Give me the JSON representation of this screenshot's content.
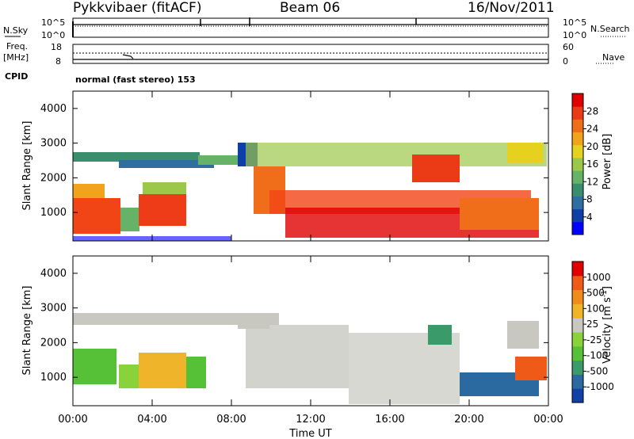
{
  "header": {
    "station": "Pykkvibaer (fitACF)",
    "beam": "Beam 06",
    "date": "16/Nov/2011"
  },
  "nsky_panel": {
    "left_label": "N.Sky",
    "left_ticks": [
      "10^5",
      "10^0"
    ],
    "right_label": "N.Search",
    "right_ticks": [
      "10^5",
      "10^0"
    ]
  },
  "freq_panel": {
    "left_label_1": "Freq.",
    "left_label_2": "[MHz]",
    "left_ticks": [
      "18",
      "8"
    ],
    "right_label": "Nave",
    "right_ticks": [
      "60",
      "0"
    ]
  },
  "cpid": {
    "label": "CPID",
    "value": "normal (fast stereo) 153"
  },
  "chart_data": [
    {
      "type": "heatmap",
      "name": "power",
      "ylabel": "Slant Range [km]",
      "yticks": [
        "4000",
        "3000",
        "2000",
        "1000"
      ],
      "ylim": [
        180,
        4500
      ],
      "xlim": [
        0,
        24
      ],
      "colorbar": {
        "label": "Power [dB]",
        "ticks": [
          "28",
          "24",
          "20",
          "16",
          "12",
          "8",
          "4"
        ],
        "colors": [
          "#0000ff",
          "#0e3fa8",
          "#2e6fa0",
          "#3a8e6e",
          "#66b266",
          "#9cc84a",
          "#e6d21e",
          "#f2a31c",
          "#f06e1a",
          "#ea3a16",
          "#e00000"
        ]
      }
    },
    {
      "type": "heatmap",
      "name": "velocity",
      "ylabel": "Slant Range [km]",
      "yticks": [
        "4000",
        "3000",
        "2000",
        "1000"
      ],
      "ylim": [
        180,
        4500
      ],
      "xlim": [
        0,
        24
      ],
      "colorbar": {
        "label": "Velocity [m s",
        "label_sup": "-1",
        "label_end": "]",
        "ticks": [
          "1000",
          "500",
          "100",
          "25",
          "-25",
          "-100",
          "-500",
          "-1000"
        ],
        "colors": [
          "#1040a8",
          "#2a6aa0",
          "#3a9a6a",
          "#56c036",
          "#8ad23a",
          "#c8c8c0",
          "#f0b42a",
          "#f08c1a",
          "#f05a18",
          "#e00000"
        ]
      }
    }
  ],
  "time_axis": {
    "ticks": [
      "00:00",
      "04:00",
      "08:00",
      "12:00",
      "16:00",
      "20:00",
      "00:00"
    ],
    "label": "Time UT"
  }
}
